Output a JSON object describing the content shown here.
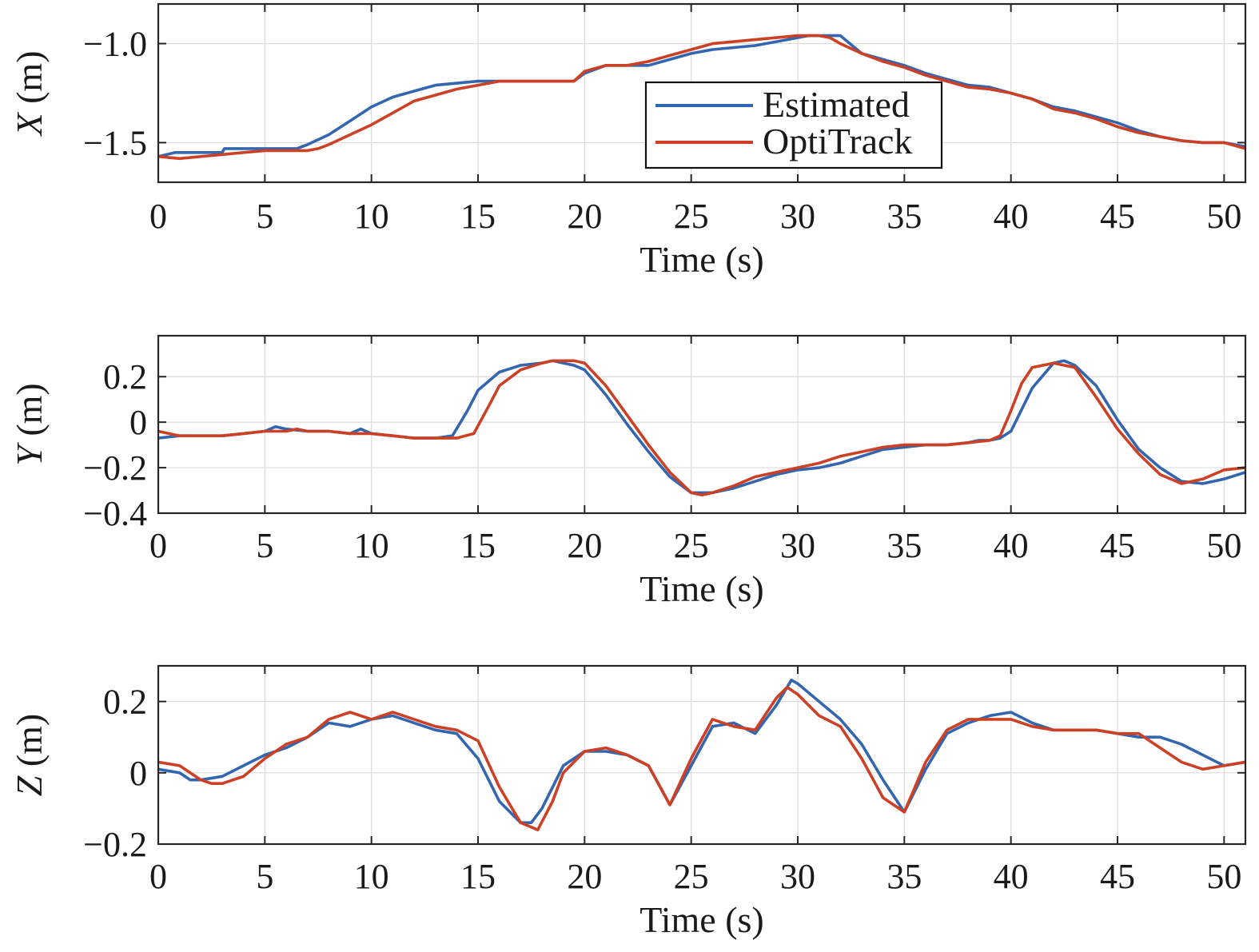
{
  "colors": {
    "estimated": "#3466b0",
    "optitrack": "#cc4125"
  },
  "legend": {
    "placement": "top-right-inside-first-panel",
    "items": [
      "Estimated",
      "OptiTrack"
    ]
  },
  "chart_data": [
    {
      "type": "line",
      "xlabel": "Time (s)",
      "ylabel_var": "X",
      "ylabel_unit": " (m)",
      "xlim": [
        0,
        51
      ],
      "ylim": [
        -1.7,
        -0.8
      ],
      "xticks": [
        0,
        5,
        10,
        15,
        20,
        25,
        30,
        35,
        40,
        45,
        50
      ],
      "yticks": [
        -1.5,
        -1.0
      ],
      "ytick_labels": [
        "−1.5",
        "−1.0"
      ],
      "grid": true,
      "series": [
        {
          "name": "Estimated",
          "color": "#3466b0",
          "x": [
            0,
            0.8,
            3,
            3.1,
            6.5,
            7,
            8,
            9,
            10,
            11,
            12,
            13,
            14,
            15,
            16,
            17,
            18,
            19.5,
            20,
            21,
            22,
            23,
            24,
            25,
            26,
            27,
            28,
            29,
            30,
            30.5,
            31,
            32,
            33,
            34,
            35,
            36,
            37,
            38,
            39,
            40,
            41,
            42,
            43,
            44,
            45,
            46,
            47,
            48,
            49,
            50,
            51
          ],
          "y": [
            -1.57,
            -1.55,
            -1.55,
            -1.53,
            -1.53,
            -1.51,
            -1.46,
            -1.39,
            -1.32,
            -1.27,
            -1.24,
            -1.21,
            -1.2,
            -1.19,
            -1.19,
            -1.19,
            -1.19,
            -1.19,
            -1.15,
            -1.11,
            -1.11,
            -1.11,
            -1.08,
            -1.05,
            -1.03,
            -1.02,
            -1.01,
            -0.99,
            -0.97,
            -0.96,
            -0.96,
            -0.96,
            -1.05,
            -1.08,
            -1.11,
            -1.15,
            -1.18,
            -1.21,
            -1.22,
            -1.25,
            -1.28,
            -1.32,
            -1.34,
            -1.37,
            -1.4,
            -1.44,
            -1.47,
            -1.49,
            -1.5,
            -1.5,
            -1.52
          ]
        },
        {
          "name": "OptiTrack",
          "color": "#cc4125",
          "x": [
            0,
            1,
            2,
            3,
            4,
            5,
            6,
            7,
            7.5,
            8,
            9,
            10,
            11,
            12,
            13,
            14,
            15,
            16,
            17,
            18,
            19.5,
            20,
            21,
            22,
            23,
            24,
            25,
            26,
            27,
            28,
            29,
            30,
            31,
            31.5,
            32,
            33,
            34,
            35,
            36,
            37,
            38,
            39,
            40,
            41,
            42,
            43,
            44,
            45,
            46,
            47,
            48,
            49,
            50,
            51
          ],
          "y": [
            -1.57,
            -1.58,
            -1.57,
            -1.56,
            -1.55,
            -1.54,
            -1.54,
            -1.54,
            -1.53,
            -1.51,
            -1.46,
            -1.41,
            -1.35,
            -1.29,
            -1.26,
            -1.23,
            -1.21,
            -1.19,
            -1.19,
            -1.19,
            -1.19,
            -1.14,
            -1.11,
            -1.11,
            -1.09,
            -1.06,
            -1.03,
            -1.0,
            -0.99,
            -0.98,
            -0.97,
            -0.96,
            -0.96,
            -0.97,
            -1.0,
            -1.05,
            -1.09,
            -1.12,
            -1.16,
            -1.19,
            -1.22,
            -1.23,
            -1.25,
            -1.28,
            -1.33,
            -1.35,
            -1.38,
            -1.42,
            -1.45,
            -1.47,
            -1.49,
            -1.5,
            -1.5,
            -1.53
          ]
        }
      ]
    },
    {
      "type": "line",
      "xlabel": "Time (s)",
      "ylabel_var": "Y",
      "ylabel_unit": " (m)",
      "xlim": [
        0,
        51
      ],
      "ylim": [
        -0.4,
        0.38
      ],
      "xticks": [
        0,
        5,
        10,
        15,
        20,
        25,
        30,
        35,
        40,
        45,
        50
      ],
      "yticks": [
        -0.4,
        -0.2,
        0,
        0.2
      ],
      "ytick_labels": [
        "−0.4",
        "−0.2",
        "0",
        "0.2"
      ],
      "grid": true,
      "series": [
        {
          "name": "Estimated",
          "color": "#3466b0",
          "x": [
            0,
            1,
            2,
            3,
            4,
            5,
            5.5,
            6,
            7,
            8,
            9,
            9.5,
            10,
            11,
            12,
            13,
            13.8,
            14.5,
            15,
            16,
            17,
            18,
            18.5,
            19,
            19.5,
            20,
            21,
            22,
            23,
            24,
            25,
            26,
            27,
            28,
            29,
            30,
            31,
            32,
            33,
            34,
            35,
            36,
            37,
            38,
            38.5,
            39,
            39.5,
            40,
            41,
            42,
            42.5,
            43,
            44,
            45,
            46,
            47,
            48,
            49,
            50,
            51
          ],
          "y": [
            -0.07,
            -0.06,
            -0.06,
            -0.06,
            -0.05,
            -0.04,
            -0.02,
            -0.03,
            -0.04,
            -0.04,
            -0.05,
            -0.03,
            -0.05,
            -0.06,
            -0.07,
            -0.07,
            -0.06,
            0.05,
            0.14,
            0.22,
            0.25,
            0.26,
            0.27,
            0.26,
            0.25,
            0.23,
            0.12,
            -0.01,
            -0.13,
            -0.24,
            -0.31,
            -0.31,
            -0.29,
            -0.26,
            -0.23,
            -0.21,
            -0.2,
            -0.18,
            -0.15,
            -0.12,
            -0.11,
            -0.1,
            -0.1,
            -0.09,
            -0.08,
            -0.08,
            -0.07,
            -0.04,
            0.15,
            0.26,
            0.27,
            0.25,
            0.16,
            0.01,
            -0.12,
            -0.2,
            -0.26,
            -0.27,
            -0.25,
            -0.22
          ]
        },
        {
          "name": "OptiTrack",
          "color": "#cc4125",
          "x": [
            0,
            1,
            2,
            3,
            4,
            5,
            6,
            6.5,
            7,
            8,
            9,
            10,
            11,
            12,
            13,
            14,
            14.8,
            15.5,
            16,
            17,
            18,
            18.5,
            19,
            19.5,
            20,
            21,
            22,
            23,
            24,
            25,
            25.5,
            26,
            27,
            28,
            29,
            30,
            31,
            32,
            33,
            34,
            35,
            36,
            37,
            38,
            39,
            39.5,
            40,
            40.5,
            41,
            42,
            43,
            44,
            45,
            46,
            47,
            48,
            49,
            50,
            51
          ],
          "y": [
            -0.04,
            -0.06,
            -0.06,
            -0.06,
            -0.05,
            -0.04,
            -0.04,
            -0.03,
            -0.04,
            -0.04,
            -0.05,
            -0.05,
            -0.06,
            -0.07,
            -0.07,
            -0.07,
            -0.05,
            0.07,
            0.16,
            0.23,
            0.26,
            0.27,
            0.27,
            0.27,
            0.26,
            0.16,
            0.03,
            -0.1,
            -0.22,
            -0.31,
            -0.32,
            -0.31,
            -0.28,
            -0.24,
            -0.22,
            -0.2,
            -0.18,
            -0.15,
            -0.13,
            -0.11,
            -0.1,
            -0.1,
            -0.1,
            -0.09,
            -0.08,
            -0.06,
            0.05,
            0.17,
            0.24,
            0.26,
            0.24,
            0.11,
            -0.03,
            -0.14,
            -0.23,
            -0.27,
            -0.25,
            -0.21,
            -0.2
          ]
        }
      ]
    },
    {
      "type": "line",
      "xlabel": "Time (s)",
      "ylabel_var": "Z",
      "ylabel_unit": " (m)",
      "xlim": [
        0,
        51
      ],
      "ylim": [
        -0.2,
        0.3
      ],
      "xticks": [
        0,
        5,
        10,
        15,
        20,
        25,
        30,
        35,
        40,
        45,
        50
      ],
      "yticks": [
        -0.2,
        0,
        0.2
      ],
      "ytick_labels": [
        "−0.2",
        "0",
        "0.2"
      ],
      "grid": true,
      "series": [
        {
          "name": "Estimated",
          "color": "#3466b0",
          "x": [
            0,
            1,
            1.5,
            2,
            3,
            4,
            5,
            6,
            7,
            8,
            9,
            10,
            11,
            12,
            13,
            14,
            15,
            16,
            17,
            17.5,
            18,
            19,
            20,
            21,
            22,
            23,
            24,
            25,
            26,
            27,
            28,
            29,
            29.7,
            30,
            31,
            32,
            33,
            34,
            35,
            36,
            37,
            38,
            39,
            40,
            41,
            42,
            43,
            44,
            45,
            46,
            47,
            48,
            49,
            50,
            51
          ],
          "y": [
            0.01,
            0.0,
            -0.02,
            -0.02,
            -0.01,
            0.02,
            0.05,
            0.07,
            0.1,
            0.14,
            0.13,
            0.15,
            0.16,
            0.14,
            0.12,
            0.11,
            0.04,
            -0.08,
            -0.14,
            -0.14,
            -0.1,
            0.02,
            0.06,
            0.06,
            0.05,
            0.02,
            -0.09,
            0.02,
            0.13,
            0.14,
            0.11,
            0.19,
            0.26,
            0.25,
            0.2,
            0.15,
            0.08,
            -0.02,
            -0.11,
            0.01,
            0.11,
            0.14,
            0.16,
            0.17,
            0.14,
            0.12,
            0.12,
            0.12,
            0.11,
            0.1,
            0.1,
            0.08,
            0.05,
            0.02,
            0.03
          ]
        },
        {
          "name": "OptiTrack",
          "color": "#cc4125",
          "x": [
            0,
            1,
            2,
            2.5,
            3,
            4,
            5,
            6,
            7,
            8,
            9,
            10,
            11,
            12,
            13,
            14,
            15,
            16,
            17,
            17.8,
            18.5,
            19,
            20,
            21,
            22,
            23,
            24,
            25,
            26,
            27,
            28,
            29,
            29.5,
            30,
            31,
            32,
            33,
            34,
            35,
            36,
            37,
            38,
            39,
            40,
            41,
            42,
            43,
            44,
            45,
            46,
            47,
            48,
            49,
            50,
            51
          ],
          "y": [
            0.03,
            0.02,
            -0.02,
            -0.03,
            -0.03,
            -0.01,
            0.04,
            0.08,
            0.1,
            0.15,
            0.17,
            0.15,
            0.17,
            0.15,
            0.13,
            0.12,
            0.09,
            -0.04,
            -0.14,
            -0.16,
            -0.08,
            0.0,
            0.06,
            0.07,
            0.05,
            0.02,
            -0.09,
            0.04,
            0.15,
            0.13,
            0.12,
            0.21,
            0.24,
            0.22,
            0.16,
            0.13,
            0.04,
            -0.07,
            -0.11,
            0.03,
            0.12,
            0.15,
            0.15,
            0.15,
            0.13,
            0.12,
            0.12,
            0.12,
            0.11,
            0.11,
            0.07,
            0.03,
            0.01,
            0.02,
            0.03
          ]
        }
      ]
    }
  ]
}
